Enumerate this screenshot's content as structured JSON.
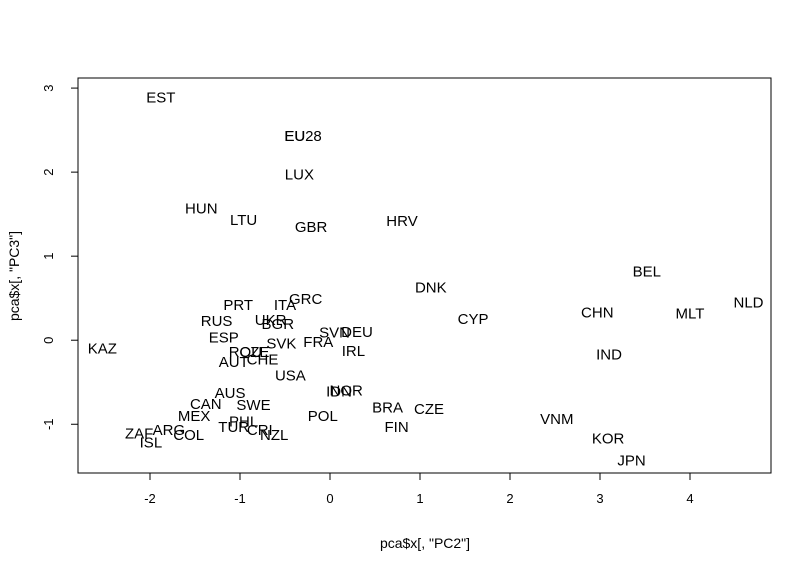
{
  "chart_data": {
    "type": "scatter",
    "title": "",
    "xlabel": "pca$x[, \"PC2\"]",
    "ylabel": "pca$x[, \"PC3\"]",
    "xlim": [
      -2.8,
      4.9
    ],
    "ylim": [
      -1.58,
      3.12
    ],
    "xticks": [
      -2,
      -1,
      0,
      1,
      2,
      3,
      4
    ],
    "yticks": [
      -1,
      0,
      1,
      2,
      3
    ],
    "grid": false,
    "legend": "none",
    "marker": "text-label",
    "points": [
      {
        "label": "EST",
        "x": -1.88,
        "y": 2.89
      },
      {
        "label": "EU",
        "x": -0.39,
        "y": 2.43
      },
      {
        "label": "EU28",
        "x": -0.3,
        "y": 2.43
      },
      {
        "label": "LUX",
        "x": -0.34,
        "y": 1.97
      },
      {
        "label": "HUN",
        "x": -1.43,
        "y": 1.57
      },
      {
        "label": "LTU",
        "x": -0.96,
        "y": 1.43
      },
      {
        "label": "GBR",
        "x": -0.21,
        "y": 1.35
      },
      {
        "label": "HRV",
        "x": 0.8,
        "y": 1.42
      },
      {
        "label": "DNK",
        "x": 1.12,
        "y": 0.63
      },
      {
        "label": "BEL",
        "x": 3.52,
        "y": 0.82
      },
      {
        "label": "NLD",
        "x": 4.65,
        "y": 0.45
      },
      {
        "label": "MLT",
        "x": 4.0,
        "y": 0.32
      },
      {
        "label": "CHN",
        "x": 2.97,
        "y": 0.33
      },
      {
        "label": "CYP",
        "x": 1.59,
        "y": 0.25
      },
      {
        "label": "IND",
        "x": 3.1,
        "y": -0.17
      },
      {
        "label": "KAZ",
        "x": -2.53,
        "y": -0.1
      },
      {
        "label": "PRT",
        "x": -1.02,
        "y": 0.42
      },
      {
        "label": "ITA",
        "x": -0.5,
        "y": 0.42
      },
      {
        "label": "GRC",
        "x": -0.27,
        "y": 0.49
      },
      {
        "label": "RUS",
        "x": -1.26,
        "y": 0.23
      },
      {
        "label": "UKR",
        "x": -0.66,
        "y": 0.24
      },
      {
        "label": "BGR",
        "x": -0.58,
        "y": 0.19
      },
      {
        "label": "SVN",
        "x": 0.05,
        "y": 0.09
      },
      {
        "label": "DEU",
        "x": 0.3,
        "y": 0.1
      },
      {
        "label": "FRA",
        "x": -0.13,
        "y": -0.02
      },
      {
        "label": "SVK",
        "x": -0.54,
        "y": -0.04
      },
      {
        "label": "ESP",
        "x": -1.18,
        "y": 0.03
      },
      {
        "label": "IRL",
        "x": 0.26,
        "y": -0.13
      },
      {
        "label": "ROU",
        "x": -0.94,
        "y": -0.14
      },
      {
        "label": "CZE",
        "x": -0.84,
        "y": -0.14
      },
      {
        "label": "CHE",
        "x": -0.75,
        "y": -0.23
      },
      {
        "label": "AUT",
        "x": -1.07,
        "y": -0.26
      },
      {
        "label": "USA",
        "x": -0.44,
        "y": -0.42
      },
      {
        "label": "IDN",
        "x": 0.1,
        "y": -0.61
      },
      {
        "label": "NOR",
        "x": 0.18,
        "y": -0.6
      },
      {
        "label": "AUS",
        "x": -1.11,
        "y": -0.63
      },
      {
        "label": "CAN",
        "x": -1.38,
        "y": -0.76
      },
      {
        "label": "SWE",
        "x": -0.85,
        "y": -0.77
      },
      {
        "label": "BRA",
        "x": 0.64,
        "y": -0.8
      },
      {
        "label": "CZE",
        "x": 1.1,
        "y": -0.82
      },
      {
        "label": "MEX",
        "x": -1.51,
        "y": -0.9
      },
      {
        "label": "POL",
        "x": -0.08,
        "y": -0.9
      },
      {
        "label": "VNM",
        "x": 2.52,
        "y": -0.94
      },
      {
        "label": "FIN",
        "x": 0.74,
        "y": -1.03
      },
      {
        "label": "PHL",
        "x": -0.96,
        "y": -0.97
      },
      {
        "label": "TUR",
        "x": -1.07,
        "y": -1.03
      },
      {
        "label": "CRI",
        "x": -0.78,
        "y": -1.07
      },
      {
        "label": "NZL",
        "x": -0.62,
        "y": -1.13
      },
      {
        "label": "ARG",
        "x": -1.79,
        "y": -1.07
      },
      {
        "label": "COL",
        "x": -1.57,
        "y": -1.13
      },
      {
        "label": "ZAF",
        "x": -2.12,
        "y": -1.11
      },
      {
        "label": "ISL",
        "x": -1.99,
        "y": -1.22
      },
      {
        "label": "KOR",
        "x": 3.09,
        "y": -1.17
      },
      {
        "label": "JPN",
        "x": 3.35,
        "y": -1.43
      }
    ]
  }
}
